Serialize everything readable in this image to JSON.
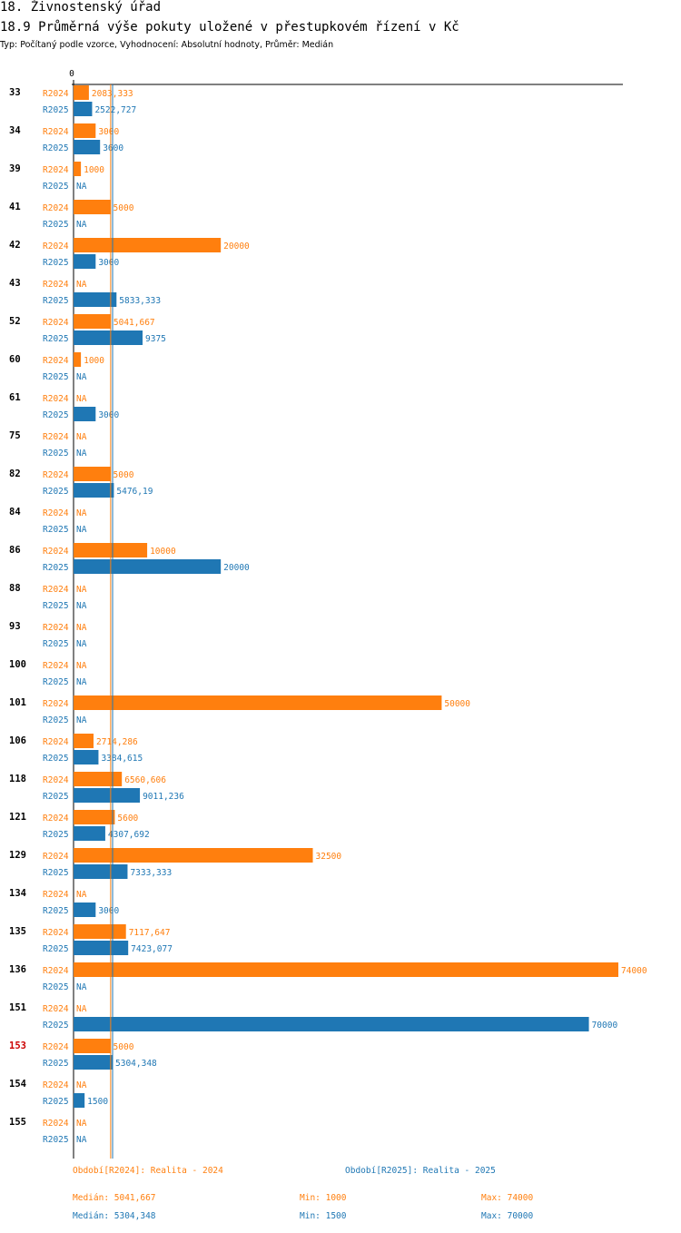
{
  "header": {
    "section": "18. Živnostenský úřad",
    "title": "18.9 Průměrná výše pokuty uložené v přestupkovém řízení v Kč",
    "subtitle": "Typ: Počítaný podle vzorce, Vyhodnocení: Absolutní hodnoty, Průměr: Medián"
  },
  "colors": {
    "r2024": "#ff7f0e",
    "r2025": "#1f77b4",
    "highlight": "#cc0000",
    "axis": "#000000"
  },
  "chart_data": {
    "type": "bar",
    "orientation": "horizontal",
    "title": "18.9 Průměrná výše pokuty uložené v přestupkovém řízení v Kč",
    "axis_zero_label": "0",
    "xlim": [
      0,
      74000
    ],
    "highlight_category": "153",
    "na_label": "NA",
    "categories": [
      "33",
      "34",
      "39",
      "41",
      "42",
      "43",
      "52",
      "60",
      "61",
      "75",
      "82",
      "84",
      "86",
      "88",
      "93",
      "100",
      "101",
      "106",
      "118",
      "121",
      "129",
      "134",
      "135",
      "136",
      "151",
      "153",
      "154",
      "155"
    ],
    "series": [
      {
        "name": "R2024",
        "values": [
          2083.333,
          3000,
          1000,
          5000,
          20000,
          null,
          5041.667,
          1000,
          null,
          null,
          5000,
          null,
          10000,
          null,
          null,
          null,
          50000,
          2714.286,
          6560.606,
          5600,
          32500,
          null,
          7117.647,
          74000,
          null,
          5000,
          null,
          null
        ],
        "labels": [
          "2083,333",
          "3000",
          "1000",
          "5000",
          "20000",
          "NA",
          "5041,667",
          "1000",
          "NA",
          "NA",
          "5000",
          "NA",
          "10000",
          "NA",
          "NA",
          "NA",
          "50000",
          "2714,286",
          "6560,606",
          "5600",
          "32500",
          "NA",
          "7117,647",
          "74000",
          "NA",
          "5000",
          "NA",
          "NA"
        ]
      },
      {
        "name": "R2025",
        "values": [
          2522.727,
          3600,
          null,
          null,
          3000,
          5833.333,
          9375,
          null,
          3000,
          null,
          5476.19,
          null,
          20000,
          null,
          null,
          null,
          null,
          3384.615,
          9011.236,
          4307.692,
          7333.333,
          3000,
          7423.077,
          null,
          70000,
          5304.348,
          1500,
          null
        ],
        "labels": [
          "2522,727",
          "3600",
          "NA",
          "NA",
          "3000",
          "5833,333",
          "9375",
          "NA",
          "3000",
          "NA",
          "5476,19",
          "NA",
          "20000",
          "NA",
          "NA",
          "NA",
          "NA",
          "3384,615",
          "9011,236",
          "4307,692",
          "7333,333",
          "3000",
          "7423,077",
          "NA",
          "70000",
          "5304,348",
          "1500",
          "NA"
        ]
      }
    ],
    "reference_lines": [
      {
        "series": "R2024",
        "stat": "median",
        "value": 5041.667
      },
      {
        "series": "R2025",
        "stat": "median",
        "value": 5304.348
      }
    ]
  },
  "legend": {
    "r2024": "Období[R2024]: Realita - 2024",
    "r2025": "Období[R2025]: Realita - 2025"
  },
  "stats": {
    "r2024": {
      "median": "Medián: 5041,667",
      "min": "Min: 1000",
      "max": "Max: 74000"
    },
    "r2025": {
      "median": "Medián: 5304,348",
      "min": "Min: 1500",
      "max": "Max: 70000"
    }
  }
}
